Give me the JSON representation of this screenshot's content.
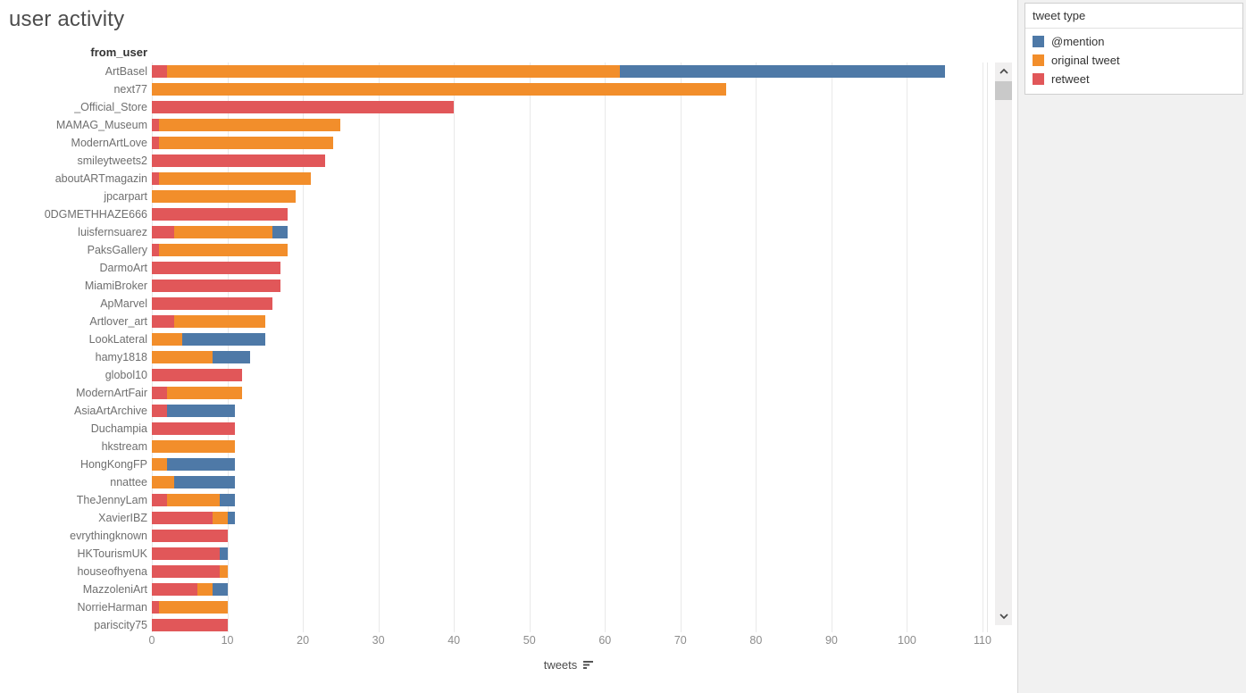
{
  "title": "user activity",
  "row_header": "from_user",
  "axis": {
    "label": "tweets",
    "ticks": [
      0,
      10,
      20,
      30,
      40,
      50,
      60,
      70,
      80,
      90,
      100,
      110
    ],
    "max": 110
  },
  "legend": {
    "title": "tweet type",
    "items": [
      {
        "label": "@mention",
        "color": "#4e79a7"
      },
      {
        "label": "original tweet",
        "color": "#f28e2b"
      },
      {
        "label": "retweet",
        "color": "#e15759"
      }
    ]
  },
  "colors": {
    "mention": "#4e79a7",
    "original_tweet": "#f28e2b",
    "retweet": "#e15759",
    "background": "#f1f1f1",
    "panel": "#ffffff",
    "gridline": "#e9e9e9"
  },
  "chart_data": {
    "type": "bar",
    "orientation": "horizontal",
    "stacked": true,
    "title": "user activity",
    "xlabel": "tweets",
    "ylabel": "from_user",
    "xlim": [
      0,
      115
    ],
    "grid": true,
    "legend_position": "top-right",
    "sort": "total descending",
    "stack_order_left_to_right": [
      "retweet",
      "original tweet",
      "@mention"
    ],
    "categories": [
      "ArtBasel",
      "next77",
      "_Official_Store",
      "MAMAG_Museum",
      "ModernArtLove",
      "smileytweets2",
      "aboutARTmagazin",
      "jpcarpart",
      "0DGMETHHAZE666",
      "luisfernsuarez",
      "PaksGallery",
      "DarmoArt",
      "MiamiBroker",
      "ApMarvel",
      "Artlover_art",
      "LookLateral",
      "hamy1818",
      "globol10",
      "ModernArtFair",
      "AsiaArtArchive",
      "Duchampia",
      "hkstream",
      "HongKongFP",
      "nnattee",
      "TheJennyLam",
      "XavierIBZ",
      "evrythingknown",
      "HKTourismUK",
      "houseofhyena",
      "MazzoleniArt",
      "NorrieHarman",
      "pariscity75"
    ],
    "series": [
      {
        "name": "retweet",
        "color": "#e15759",
        "values": [
          2,
          0,
          40,
          1,
          1,
          23,
          1,
          0,
          18,
          3,
          1,
          17,
          17,
          16,
          3,
          0,
          0,
          12,
          2,
          2,
          11,
          0,
          0,
          0,
          2,
          8,
          10,
          9,
          9,
          6,
          1,
          10
        ]
      },
      {
        "name": "original tweet",
        "color": "#f28e2b",
        "values": [
          60,
          76,
          0,
          24,
          23,
          0,
          20,
          19,
          0,
          13,
          17,
          0,
          0,
          0,
          12,
          4,
          8,
          0,
          10,
          0,
          0,
          11,
          2,
          3,
          7,
          2,
          0,
          0,
          1,
          2,
          9,
          0
        ]
      },
      {
        "name": "@mention",
        "color": "#4e79a7",
        "values": [
          43,
          0,
          0,
          0,
          0,
          0,
          0,
          0,
          0,
          2,
          0,
          0,
          0,
          0,
          0,
          11,
          5,
          0,
          0,
          9,
          0,
          0,
          9,
          8,
          2,
          1,
          0,
          1,
          0,
          2,
          0,
          0
        ]
      }
    ],
    "totals": [
      105,
      76,
      40,
      25,
      24,
      23,
      21,
      19,
      18,
      18,
      18,
      17,
      17,
      16,
      15,
      15,
      13,
      12,
      12,
      11,
      11,
      11,
      11,
      11,
      11,
      11,
      10,
      10,
      10,
      10,
      10,
      10
    ]
  }
}
